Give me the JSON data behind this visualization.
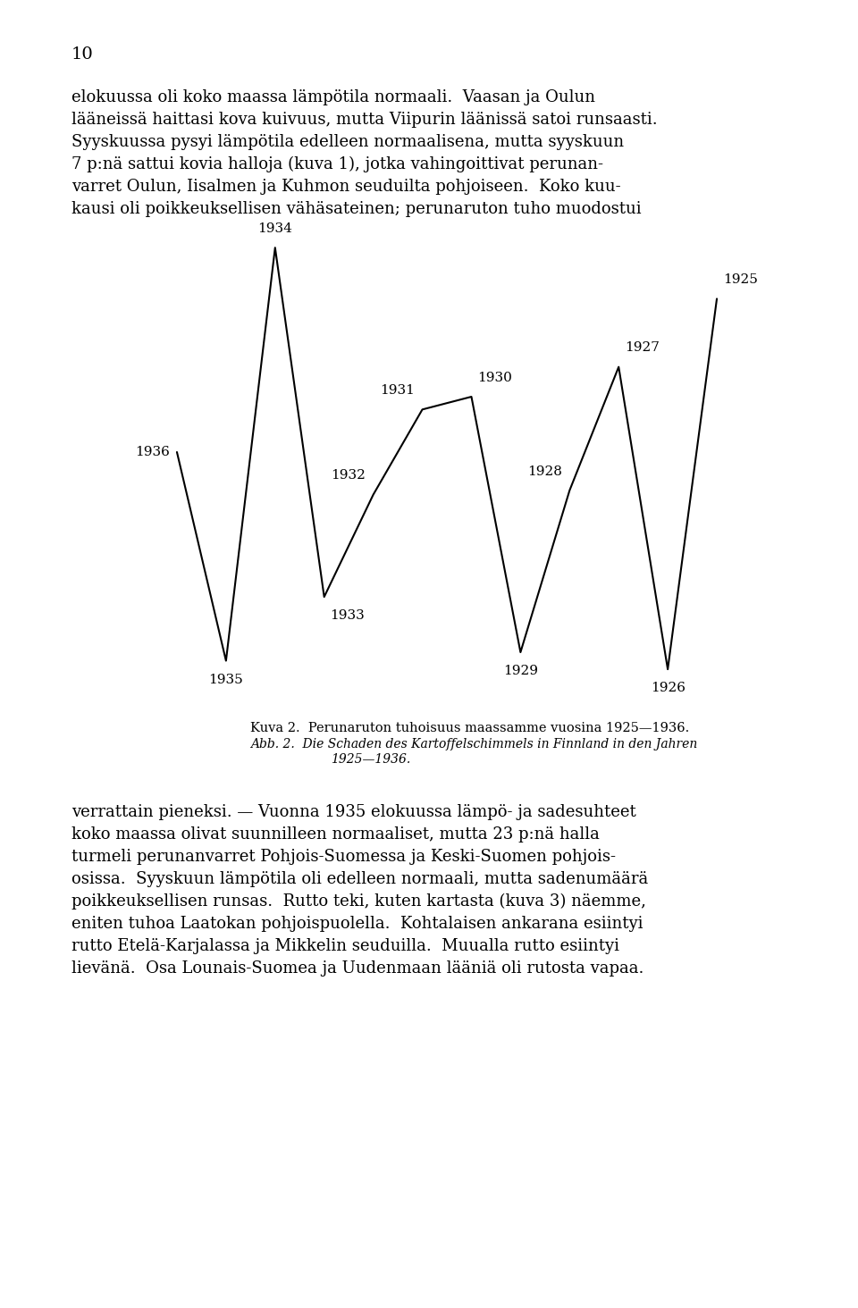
{
  "title_kuva": "Kuva 2.  Perunaruton tuhoisuus maassamme vuosina 1925—1936.",
  "title_abb_line1": "Abb. 2.  Die Schaden des Kartoffelschimmels in Finnland in den Jahren",
  "title_abb_line2": "1925—1936.",
  "background_color": "#ffffff",
  "line_color": "#000000",
  "x_order": [
    1936,
    1935,
    1934,
    1933,
    1932,
    1931,
    1930,
    1929,
    1928,
    1927,
    1926,
    1925
  ],
  "y_values": [
    52,
    3,
    100,
    18,
    42,
    62,
    65,
    5,
    43,
    72,
    1,
    88
  ],
  "page_number": "10",
  "page_text_lines": [
    "elokuussa oli koko maassa lämpötila normaali.  Vaasan ja Oulun",
    "lääneissä haittasi kova kuivuus, mutta Viipurin läänissä satoi runsaasti.",
    "Syyskuussa pysyi lämpötila edelleen normaalisena, mutta syyskuun",
    "7 p:nä sattui kovia halloja (kuva 1), jotka vahingoittivat perunan-",
    "varret Oulun, Iisalmen ja Kuhmon seuduilta pohjoiseen.  Koko kuu-",
    "kausi oli poikkeuksellisen vähäsateinen; perunaruton tuho muodostui"
  ],
  "bottom_text_lines": [
    "verrattain pieneksi. — Vuonna 1935 elokuussa lämpö- ja sadesuhteet",
    "koko maassa olivat suunnilleen normaaliset, mutta 23 p:nä halla",
    "turmeli perunanvarret Pohjois-Suomessa ja Keski-Suomen pohjois-",
    "osissa.  Syyskuun lämpötila oli edelleen normaali, mutta sadenumäärä",
    "poikkeuksellisen runsas.  Rutto teki, kuten kartasta (kuva 3) näemme,",
    "eniten tuhoa Laatokan pohjoispuolella.  Kohtalaisen ankarana esiintyi",
    "rutto Etelä-Karjalassa ja Mikkelin seuduilla.  Muualla rutto esiintyi",
    "lievänä.  Osa Lounais-Suomea ja Uudenmaan lääniä oli rutosta vapaa."
  ],
  "label_ha": [
    "right",
    "center",
    "center",
    "left",
    "right",
    "right",
    "left",
    "center",
    "right",
    "left",
    "center",
    "left"
  ],
  "label_va": [
    "center",
    "top",
    "bottom",
    "top",
    "bottom",
    "bottom",
    "bottom",
    "top",
    "bottom",
    "bottom",
    "top",
    "bottom"
  ],
  "label_dx": [
    -0.15,
    0.0,
    0.0,
    0.12,
    -0.15,
    -0.15,
    0.12,
    0.0,
    -0.15,
    0.12,
    0.0,
    0.12
  ],
  "label_dy": [
    0.0,
    -3.0,
    3.0,
    -3.0,
    3.0,
    3.0,
    3.0,
    -3.0,
    3.0,
    3.0,
    -3.0,
    3.0
  ]
}
